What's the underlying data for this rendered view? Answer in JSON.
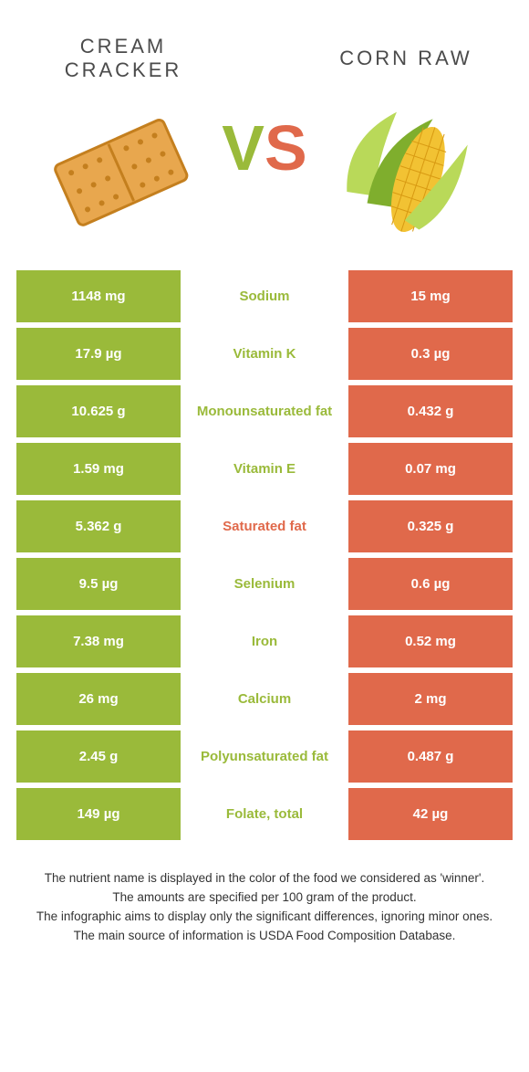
{
  "colors": {
    "left": "#9aba3a",
    "right": "#e0694b",
    "title_text": "#4b4b4b",
    "foot_text": "#333333",
    "cracker_fill": "#e8a74e",
    "cracker_stroke": "#c47f1e",
    "corn_kernel": "#f2c233",
    "corn_husk_light": "#b9d959",
    "corn_husk_dark": "#7fae2d"
  },
  "header": {
    "left_title": "CREAM\nCRACKER",
    "right_title": "CORN RAW",
    "vs_v": "V",
    "vs_s": "S"
  },
  "rows": [
    {
      "nutrient": "Sodium",
      "left": "1148 mg",
      "right": "15 mg",
      "winner": "left"
    },
    {
      "nutrient": "Vitamin K",
      "left": "17.9 µg",
      "right": "0.3 µg",
      "winner": "left"
    },
    {
      "nutrient": "Monounsaturated fat",
      "left": "10.625 g",
      "right": "0.432 g",
      "winner": "left"
    },
    {
      "nutrient": "Vitamin E",
      "left": "1.59 mg",
      "right": "0.07 mg",
      "winner": "left"
    },
    {
      "nutrient": "Saturated fat",
      "left": "5.362 g",
      "right": "0.325 g",
      "winner": "right"
    },
    {
      "nutrient": "Selenium",
      "left": "9.5 µg",
      "right": "0.6 µg",
      "winner": "left"
    },
    {
      "nutrient": "Iron",
      "left": "7.38 mg",
      "right": "0.52 mg",
      "winner": "left"
    },
    {
      "nutrient": "Calcium",
      "left": "26 mg",
      "right": "2 mg",
      "winner": "left"
    },
    {
      "nutrient": "Polyunsaturated fat",
      "left": "2.45 g",
      "right": "0.487 g",
      "winner": "left"
    },
    {
      "nutrient": "Folate, total",
      "left": "149 µg",
      "right": "42 µg",
      "winner": "left"
    }
  ],
  "footnote": [
    "The nutrient name is displayed in the color of the food we considered as 'winner'.",
    "The amounts are specified per 100 gram of the product.",
    "The infographic aims to display only the significant differences, ignoring minor ones.",
    "The main source of information is USDA Food Composition Database."
  ]
}
